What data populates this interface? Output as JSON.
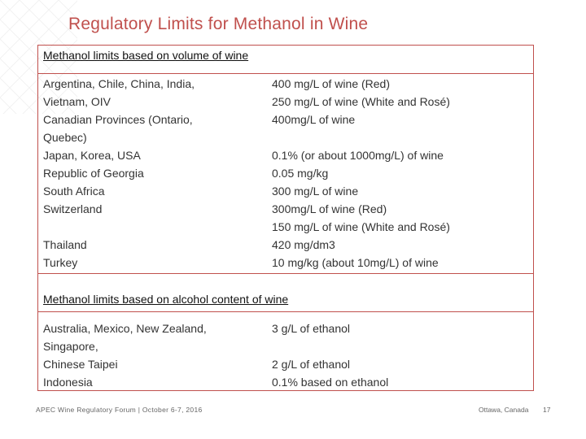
{
  "title": "Regulatory Limits for Methanol in Wine",
  "section1": {
    "heading": "Methanol limits based on volume of wine",
    "countries": [
      "Argentina, Chile, China, India,",
      "Vietnam, OIV",
      "Canadian Provinces (Ontario,",
      "Quebec)",
      "Japan, Korea, USA",
      "Republic of Georgia",
      "South Africa",
      "Switzerland",
      "",
      "Thailand",
      "Turkey"
    ],
    "limits": [
      "400 mg/L of wine (Red)",
      "250 mg/L of wine (White and Rosé)",
      "400mg/L of wine",
      "",
      "0.1% (or about 1000mg/L) of wine",
      "0.05 mg/kg",
      "300 mg/L of wine",
      "300mg/L  of wine (Red)",
      "150 mg/L of wine (White and Rosé)",
      "420 mg/dm3",
      "10 mg/kg (about 10mg/L) of wine"
    ]
  },
  "section2": {
    "heading": "Methanol limits based on alcohol content of wine",
    "countries": [
      "Australia, Mexico, New Zealand,",
      "Singapore,",
      "Chinese Taipei",
      "Indonesia"
    ],
    "limits": [
      "3 g/L of ethanol",
      "",
      "2 g/L of ethanol",
      "0.1% based on ethanol"
    ]
  },
  "footer": {
    "event": "APEC Wine Regulatory Forum | October 6-7, 2016",
    "location": "Ottawa, Canada",
    "page": "17"
  },
  "colors": {
    "accent": "#c0504d"
  }
}
